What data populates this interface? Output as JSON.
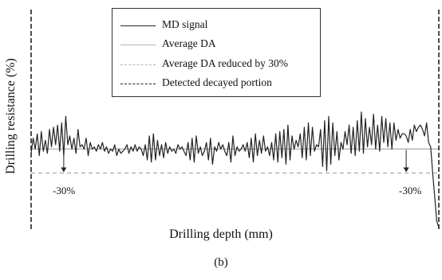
{
  "caption": "(b)",
  "chart_data": {
    "type": "line",
    "title": "",
    "xlabel": "Drilling depth (mm)",
    "ylabel": "Drilling resistance (%)",
    "xlim": [
      0,
      100
    ],
    "ylim": [
      0,
      100
    ],
    "legend": {
      "placement": "top-center",
      "entries": [
        {
          "label": "MD signal",
          "color": "#222222",
          "style": "solid"
        },
        {
          "label": "Average DA",
          "color": "#b3b3b3",
          "style": "solid"
        },
        {
          "label": "Average DA reduced by 30%",
          "color": "#b3b3b3",
          "style": "dashed"
        },
        {
          "label": "Detected decayed portion",
          "color": "#222222",
          "style": "dashed"
        }
      ]
    },
    "average_da": 36,
    "reduced_da": 25,
    "decayed_boundaries": [
      0,
      100
    ],
    "annotations": [
      {
        "text": "-30%",
        "x": 8
      },
      {
        "text": "-30%",
        "x": 92
      }
    ],
    "series": [
      {
        "style": "solid",
        "x": [
          0,
          0.5,
          1,
          1.5,
          2,
          2.5,
          3,
          3.5,
          4,
          4.5,
          5,
          5.5,
          6,
          6.5,
          7,
          7.5,
          8,
          8.5,
          9,
          9.5,
          10,
          10.5,
          11,
          11.5,
          12,
          12.5,
          13,
          13.5,
          14,
          14.5,
          15,
          15.5,
          16,
          16.5,
          17,
          17.5,
          18,
          18.5,
          19,
          19.5,
          20,
          20.5,
          21,
          21.5,
          22,
          22.5,
          23,
          23.5,
          24,
          24.5,
          25,
          25.5,
          26,
          26.5,
          27,
          27.5,
          28,
          28.5,
          29,
          29.5,
          30,
          30.5,
          31,
          31.5,
          32,
          32.5,
          33,
          33.5,
          34,
          34.5,
          35,
          35.5,
          36,
          36.5,
          37,
          37.5,
          38,
          38.5,
          39,
          39.5,
          40,
          40.5,
          41,
          41.5,
          42,
          42.5,
          43,
          43.5,
          44,
          44.5,
          45,
          45.5,
          46,
          46.5,
          47,
          47.5,
          48,
          48.5,
          49,
          49.5,
          50,
          50.5,
          51,
          51.5,
          52,
          52.5,
          53,
          53.5,
          54,
          54.5,
          55,
          55.5,
          56,
          56.5,
          57,
          57.5,
          58,
          58.5,
          59,
          59.5,
          60,
          60.5,
          61,
          61.5,
          62,
          62.5,
          63,
          63.5,
          64,
          64.5,
          65,
          65.5,
          66,
          66.5,
          67,
          67.5,
          68,
          68.5,
          69,
          69.5,
          70,
          70.5,
          71,
          71.5,
          72,
          72.5,
          73,
          73.5,
          74,
          74.5,
          75,
          75.5,
          76,
          76.5,
          77,
          77.5,
          78,
          78.5,
          79,
          79.5,
          80,
          80.5,
          81,
          81.5,
          82,
          82.5,
          83,
          83.5,
          84,
          84.5,
          85,
          85.5,
          86,
          86.5,
          87,
          87.5,
          88,
          88.5,
          89,
          89.5,
          90,
          90.5,
          91,
          91.5,
          92,
          92.5,
          93,
          93.5,
          94,
          94.5,
          95,
          95.5,
          96,
          96.5,
          97,
          97.5,
          98,
          98.5,
          99,
          99.5,
          100
        ],
        "values": [
          34,
          41,
          36,
          43,
          33,
          44,
          35,
          40,
          34,
          45,
          37,
          46,
          38,
          47,
          35,
          48,
          33,
          51,
          38,
          42,
          36,
          41,
          34,
          45,
          37,
          38,
          36,
          41,
          33,
          39,
          36,
          37,
          35,
          38,
          36,
          39,
          35,
          37,
          34,
          36,
          35,
          38,
          33,
          36,
          34,
          35,
          36,
          38,
          34,
          37,
          35,
          38,
          35,
          37,
          36,
          33,
          38,
          31,
          42,
          30,
          43,
          31,
          40,
          33,
          38,
          32,
          39,
          34,
          37,
          35,
          36,
          34,
          38,
          36,
          37,
          35,
          33,
          39,
          31,
          41,
          30,
          42,
          34,
          37,
          33,
          35,
          39,
          31,
          41,
          29,
          37,
          35,
          39,
          36,
          38,
          35,
          33,
          39,
          30,
          42,
          33,
          37,
          35,
          36,
          38,
          35,
          39,
          32,
          41,
          30,
          43,
          33,
          40,
          34,
          42,
          35,
          37,
          33,
          39,
          31,
          43,
          30,
          44,
          32,
          45,
          29,
          47,
          31,
          42,
          36,
          40,
          37,
          43,
          32,
          46,
          31,
          48,
          33,
          46,
          35,
          38,
          37,
          45,
          28,
          49,
          26,
          51,
          29,
          48,
          33,
          44,
          31,
          39,
          36,
          44,
          38,
          47,
          34,
          46,
          33,
          49,
          35,
          53,
          34,
          50,
          37,
          46,
          38,
          52,
          36,
          47,
          35,
          51,
          39,
          50,
          37,
          48,
          36,
          48,
          40,
          45,
          41,
          43,
          43,
          42,
          39,
          45,
          40,
          47,
          44,
          46,
          47,
          45,
          42,
          48,
          39,
          37,
          25,
          14,
          3,
          0
        ]
      }
    ]
  }
}
